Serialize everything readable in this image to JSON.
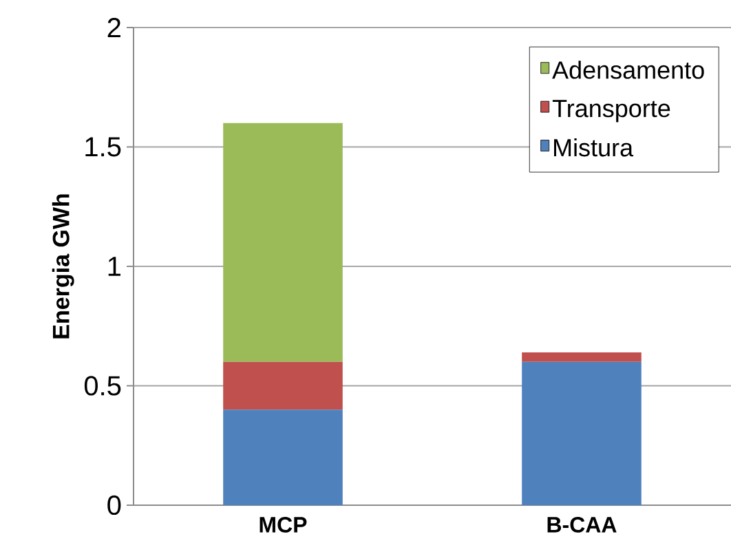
{
  "chart_data": {
    "type": "bar",
    "stacked": true,
    "categories": [
      "MCP",
      "B-CAA"
    ],
    "ylabel": "Energia GWh",
    "ylim": [
      0,
      2
    ],
    "yticks": [
      0,
      0.5,
      1,
      1.5,
      2
    ],
    "grid": "y",
    "legend": "top right",
    "series": [
      {
        "name": "Mistura",
        "color": "#4f81bd",
        "values": [
          0.4,
          0.6
        ]
      },
      {
        "name": "Transporte",
        "color": "#c0504d",
        "values": [
          0.2,
          0.04
        ]
      },
      {
        "name": "Adensamento",
        "color": "#9bbb59",
        "values": [
          1.0,
          0
        ]
      }
    ]
  }
}
